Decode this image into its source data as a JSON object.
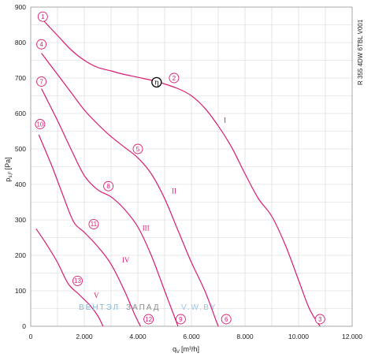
{
  "chart_data": {
    "type": "line",
    "model": "R 355 4DW 6TBL V001",
    "xlabel": "q",
    "xlabel_sub": "V",
    "xlabel_unit": "[m³/h]",
    "ylabel": "p",
    "ylabel_sub": "s,F",
    "ylabel_unit": "[Pa]",
    "xlim": [
      0,
      12000
    ],
    "ylim": [
      0,
      900
    ],
    "x_ticks": [
      0,
      2000,
      4000,
      6000,
      8000,
      10000,
      12000
    ],
    "x_tick_labels": [
      "0",
      "2.000",
      "4.000",
      "6.000",
      "8.000",
      "10.000",
      "12.000"
    ],
    "y_ticks": [
      0,
      100,
      200,
      300,
      400,
      500,
      600,
      700,
      800,
      900
    ],
    "y_tick_labels": [
      "0",
      "100",
      "200",
      "300",
      "400",
      "500",
      "600",
      "700",
      "800",
      "900"
    ],
    "grid": true,
    "line_color": "#d81b72",
    "series": [
      {
        "name": "I",
        "points": [
          [
            500,
            860
          ],
          [
            1000,
            820
          ],
          [
            1500,
            780
          ],
          [
            2000,
            750
          ],
          [
            2500,
            730
          ],
          [
            3000,
            720
          ],
          [
            3500,
            710
          ],
          [
            4000,
            702
          ],
          [
            4700,
            690
          ],
          [
            5500,
            670
          ],
          [
            6000,
            650
          ],
          [
            6500,
            615
          ],
          [
            7000,
            565
          ],
          [
            7500,
            505
          ],
          [
            8000,
            430
          ],
          [
            8500,
            360
          ],
          [
            9000,
            310
          ],
          [
            9500,
            230
          ],
          [
            10000,
            130
          ],
          [
            10400,
            50
          ],
          [
            10800,
            0
          ]
        ]
      },
      {
        "name": "II",
        "points": [
          [
            400,
            770
          ],
          [
            1000,
            710
          ],
          [
            1500,
            660
          ],
          [
            2000,
            610
          ],
          [
            2500,
            570
          ],
          [
            3000,
            535
          ],
          [
            3500,
            505
          ],
          [
            4000,
            475
          ],
          [
            4500,
            430
          ],
          [
            5000,
            360
          ],
          [
            5500,
            270
          ],
          [
            6000,
            180
          ],
          [
            6500,
            100
          ],
          [
            6900,
            20
          ],
          [
            7000,
            0
          ]
        ]
      },
      {
        "name": "III",
        "points": [
          [
            400,
            670
          ],
          [
            1000,
            580
          ],
          [
            1500,
            500
          ],
          [
            2000,
            425
          ],
          [
            2500,
            385
          ],
          [
            3000,
            365
          ],
          [
            3500,
            330
          ],
          [
            4000,
            280
          ],
          [
            4500,
            200
          ],
          [
            5000,
            100
          ],
          [
            5400,
            20
          ],
          [
            5500,
            0
          ]
        ]
      },
      {
        "name": "IV",
        "points": [
          [
            300,
            540
          ],
          [
            800,
            450
          ],
          [
            1200,
            370
          ],
          [
            1600,
            295
          ],
          [
            2000,
            265
          ],
          [
            2500,
            225
          ],
          [
            3000,
            175
          ],
          [
            3500,
            100
          ],
          [
            3900,
            30
          ],
          [
            4100,
            0
          ]
        ]
      },
      {
        "name": "V",
        "points": [
          [
            200,
            275
          ],
          [
            600,
            230
          ],
          [
            1000,
            180
          ],
          [
            1400,
            120
          ],
          [
            1800,
            90
          ],
          [
            2200,
            60
          ],
          [
            2500,
            30
          ],
          [
            2700,
            0
          ]
        ]
      }
    ],
    "point_labels": [
      {
        "label": "1",
        "x": 450,
        "y": 873
      },
      {
        "label": "2",
        "x": 5350,
        "y": 700
      },
      {
        "label": "3",
        "x": 10800,
        "y": 20
      },
      {
        "label": "4",
        "x": 400,
        "y": 795
      },
      {
        "label": "5",
        "x": 4000,
        "y": 500
      },
      {
        "label": "6",
        "x": 7300,
        "y": 20
      },
      {
        "label": "7",
        "x": 400,
        "y": 690
      },
      {
        "label": "8",
        "x": 2900,
        "y": 395
      },
      {
        "label": "9",
        "x": 5600,
        "y": 20
      },
      {
        "label": "10",
        "x": 350,
        "y": 570
      },
      {
        "label": "11",
        "x": 2350,
        "y": 288
      },
      {
        "label": "12",
        "x": 4400,
        "y": 20
      },
      {
        "label": "13",
        "x": 1750,
        "y": 128
      }
    ],
    "speed_labels": [
      {
        "label": "I",
        "x": 7250,
        "y": 575
      },
      {
        "label": "II",
        "x": 5350,
        "y": 375
      },
      {
        "label": "III",
        "x": 4300,
        "y": 270
      },
      {
        "label": "IV",
        "x": 3550,
        "y": 180
      },
      {
        "label": "V",
        "x": 2450,
        "y": 80
      }
    ],
    "eta_marker": {
      "x": 4700,
      "y": 688,
      "symbol": "η"
    },
    "watermark": {
      "part1": "ВЕНТЭЛ",
      "part2": "ЗАПАД",
      "part3": "V.W.BY"
    }
  }
}
